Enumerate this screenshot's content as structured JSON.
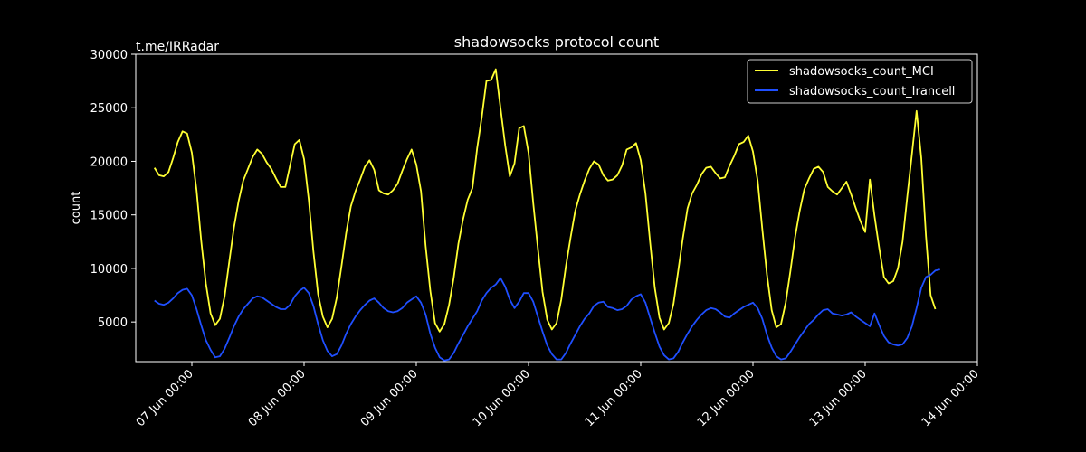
{
  "watermark": "t.me/IRRadar",
  "chart_data": {
    "type": "line",
    "title": "shadowsocks protocol count",
    "xlabel": "",
    "ylabel": "count",
    "x_start": "2023-06-06 16:00",
    "x_step_hours": 1,
    "xlim": [
      "2023-06-06 12:00",
      "2023-06-14 00:00"
    ],
    "xticks": [
      {
        "date": "2023-06-07 00:00",
        "label": "07 Jun 00:00"
      },
      {
        "date": "2023-06-08 00:00",
        "label": "08 Jun 00:00"
      },
      {
        "date": "2023-06-09 00:00",
        "label": "09 Jun 00:00"
      },
      {
        "date": "2023-06-10 00:00",
        "label": "10 Jun 00:00"
      },
      {
        "date": "2023-06-11 00:00",
        "label": "11 Jun 00:00"
      },
      {
        "date": "2023-06-12 00:00",
        "label": "12 Jun 00:00"
      },
      {
        "date": "2023-06-13 00:00",
        "label": "13 Jun 00:00"
      },
      {
        "date": "2023-06-14 00:00",
        "label": "14 Jun 00:00"
      }
    ],
    "ylim": [
      1300,
      30000
    ],
    "yticks": [
      5000,
      10000,
      15000,
      20000,
      25000,
      30000
    ],
    "grid": false,
    "legend_position": "top-right",
    "series": [
      {
        "name": "shadowsocks_count_MCI",
        "color": "#ffff33",
        "values": [
          19400,
          18700,
          18600,
          19000,
          20300,
          21800,
          22800,
          22600,
          20800,
          17300,
          12600,
          8600,
          5800,
          4700,
          5300,
          7400,
          10600,
          13800,
          16300,
          18200,
          19300,
          20400,
          21100,
          20700,
          19900,
          19300,
          18400,
          17600,
          17600,
          19600,
          21600,
          22000,
          20200,
          16400,
          11600,
          7600,
          5500,
          4500,
          5300,
          7300,
          10200,
          13300,
          15800,
          17200,
          18300,
          19500,
          20100,
          19200,
          17300,
          17000,
          16900,
          17300,
          17900,
          19100,
          20200,
          21100,
          19700,
          17200,
          12100,
          7900,
          4900,
          4100,
          4800,
          6600,
          9100,
          12300,
          14600,
          16400,
          17500,
          21200,
          24100,
          27500,
          27600,
          28600,
          25000,
          21500,
          18600,
          19800,
          23100,
          23300,
          20800,
          16100,
          11900,
          7800,
          5200,
          4300,
          4900,
          7100,
          10200,
          12900,
          15400,
          16900,
          18200,
          19300,
          20000,
          19700,
          18700,
          18200,
          18300,
          18700,
          19600,
          21100,
          21300,
          21700,
          20100,
          17000,
          12500,
          8200,
          5400,
          4300,
          4900,
          6700,
          9700,
          12800,
          15600,
          17000,
          17800,
          18800,
          19400,
          19500,
          18900,
          18400,
          18500,
          19600,
          20500,
          21600,
          21800,
          22400,
          20900,
          18200,
          13700,
          9400,
          6100,
          4500,
          4800,
          6800,
          9700,
          12900,
          15400,
          17400,
          18400,
          19300,
          19500,
          19000,
          17600,
          17200,
          16900,
          17500,
          18100,
          16900,
          15600,
          14400,
          13400,
          18300,
          14900,
          11900,
          9200,
          8600,
          8800,
          10000,
          12500,
          16700,
          20700,
          24700,
          20300,
          13000,
          7500,
          6200
        ]
      },
      {
        "name": "shadowsocks_count_Irancell",
        "color": "#1f4fff",
        "values": [
          7000,
          6700,
          6600,
          6800,
          7200,
          7700,
          8000,
          8100,
          7500,
          6200,
          4700,
          3300,
          2400,
          1700,
          1800,
          2500,
          3500,
          4600,
          5500,
          6200,
          6700,
          7200,
          7400,
          7300,
          7000,
          6700,
          6400,
          6200,
          6200,
          6600,
          7400,
          7900,
          8200,
          7700,
          6500,
          4800,
          3300,
          2300,
          1800,
          2000,
          2800,
          3900,
          4800,
          5500,
          6100,
          6600,
          7000,
          7200,
          6800,
          6300,
          6000,
          5900,
          6000,
          6300,
          6800,
          7100,
          7400,
          6800,
          5700,
          3900,
          2600,
          1700,
          1400,
          1500,
          2100,
          3000,
          3800,
          4600,
          5300,
          6000,
          7000,
          7700,
          8200,
          8500,
          9100,
          8300,
          7100,
          6300,
          6900,
          7700,
          7700,
          6900,
          5500,
          4100,
          2800,
          2000,
          1500,
          1500,
          2100,
          3000,
          3800,
          4600,
          5300,
          5800,
          6500,
          6800,
          6900,
          6400,
          6300,
          6100,
          6200,
          6500,
          7100,
          7400,
          7600,
          6800,
          5400,
          4000,
          2700,
          1900,
          1500,
          1600,
          2200,
          3100,
          3900,
          4600,
          5200,
          5700,
          6100,
          6300,
          6200,
          5900,
          5500,
          5400,
          5800,
          6100,
          6400,
          6600,
          6800,
          6300,
          5300,
          3800,
          2600,
          1800,
          1500,
          1600,
          2200,
          2900,
          3600,
          4200,
          4800,
          5200,
          5700,
          6100,
          6200,
          5800,
          5700,
          5600,
          5700,
          5900,
          5500,
          5200,
          4900,
          4600,
          5800,
          4700,
          3700,
          3100,
          2900,
          2800,
          2900,
          3500,
          4600,
          6300,
          8200,
          9200,
          9400,
          9800,
          9900
        ]
      }
    ]
  }
}
